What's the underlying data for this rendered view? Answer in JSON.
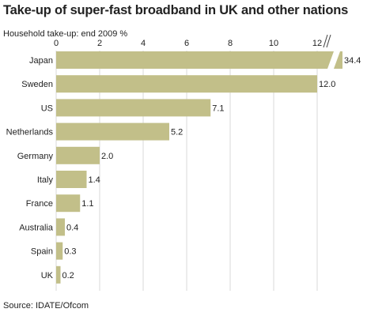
{
  "chart_data": {
    "type": "bar",
    "orientation": "horizontal",
    "title": "Take-up of super-fast broadband in UK and other nations",
    "subtitle": "Household take-up: end 2009 %",
    "source": "Source: IDATE/Ofcom",
    "categories": [
      "Japan",
      "Sweden",
      "US",
      "Netherlands",
      "Germany",
      "Italy",
      "France",
      "Australia",
      "Spain",
      "UK"
    ],
    "values": [
      34.4,
      12.0,
      7.1,
      5.2,
      2.0,
      1.4,
      1.1,
      0.4,
      0.3,
      0.2
    ],
    "value_labels": [
      "34.4",
      "12.0",
      "7.1",
      "5.2",
      "2.0",
      "1.4",
      "1.1",
      "0.4",
      "0.3",
      "0.2"
    ],
    "xlim": [
      0,
      12
    ],
    "xticks": [
      "0",
      "2",
      "4",
      "6",
      "8",
      "10",
      "12"
    ],
    "axis_break_after": 12,
    "gridlines": true,
    "bar_color": "#c2bf89",
    "grid_color": "#d9d9d9"
  }
}
